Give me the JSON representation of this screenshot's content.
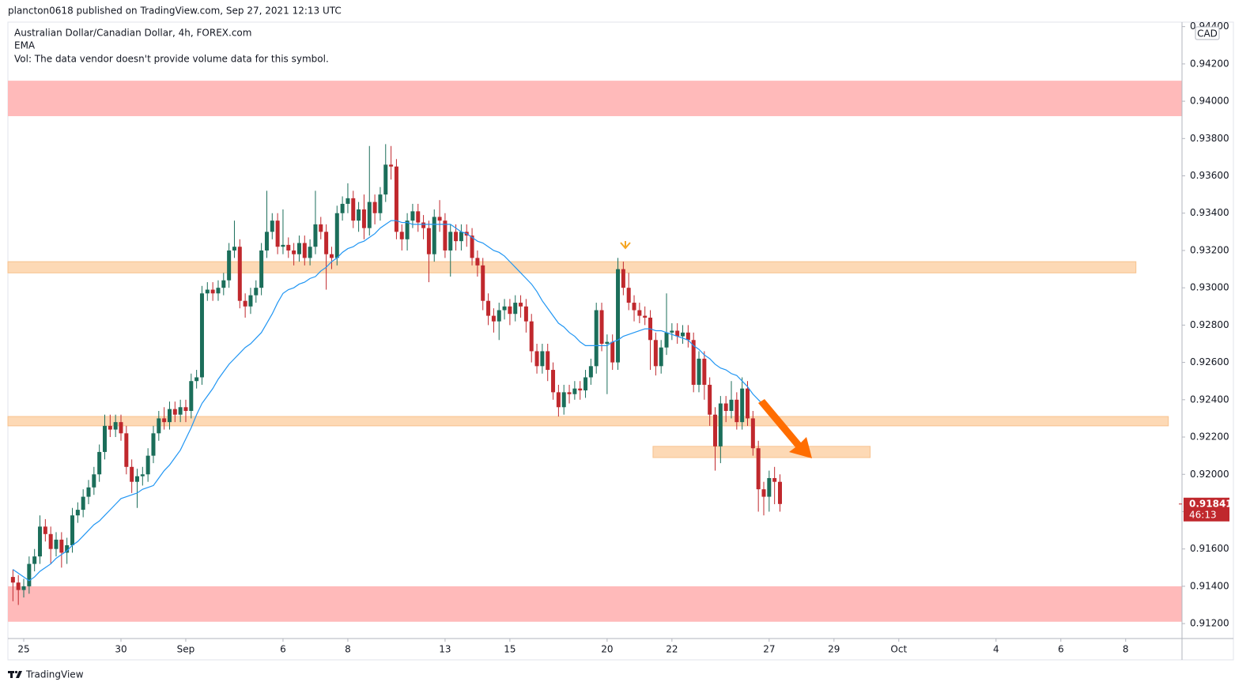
{
  "header": "plancton0618 published on TradingView.com, Sep 27, 2021 12:13 UTC",
  "footer": "TradingView",
  "chart_data": {
    "type": "candlestick",
    "title": "Australian Dollar/Canadian Dollar, 4h, FOREX.com",
    "volume_note": "Vol: The data vendor doesn't provide volume data for this symbol.",
    "currency": "CAD",
    "up_color": "#1b6e5a",
    "down_color": "#c0282d",
    "open": [
      0.9145,
      0.9142,
      0.9138,
      0.914,
      0.9152,
      0.9156,
      0.9172,
      0.9168,
      0.916,
      0.9165,
      0.9158,
      0.9162,
      0.9178,
      0.9181,
      0.9188,
      0.9193,
      0.92,
      0.9212,
      0.9226,
      0.9224,
      0.9228,
      0.9222,
      0.9204,
      0.9196,
      0.9199,
      0.92,
      0.921,
      0.9222,
      0.923,
      0.9228,
      0.9235,
      0.9232,
      0.9236,
      0.9234,
      0.925,
      0.9252,
      0.9297,
      0.9299,
      0.9297,
      0.93,
      0.9304,
      0.932,
      0.9322,
      0.9293,
      0.929,
      0.9296,
      0.93,
      0.932,
      0.933,
      0.9336,
      0.9322,
      0.9323,
      0.932,
      0.9318,
      0.9324,
      0.9316,
      0.9322,
      0.9334,
      0.933,
      0.9318,
      0.9316,
      0.934,
      0.9345,
      0.9348,
      0.9336,
      0.9342,
      0.9332,
      0.9346,
      0.934,
      0.935,
      0.9366,
      0.9365,
      0.933,
      0.9326,
      0.9336,
      0.9341,
      0.9335,
      0.9332,
      0.9318,
      0.9338,
      0.9336,
      0.932,
      0.933,
      0.9325,
      0.933,
      0.9328,
      0.9316,
      0.9312,
      0.9293,
      0.9285,
      0.9282,
      0.9288,
      0.929,
      0.9286,
      0.9292,
      0.929,
      0.9282,
      0.9266,
      0.9258,
      0.9266,
      0.9256,
      0.9244,
      0.9236,
      0.9244,
      0.9243,
      0.9246,
      0.9245,
      0.9252,
      0.9258,
      0.9288,
      0.927,
      0.9271,
      0.926,
      0.931,
      0.93,
      0.9292,
      0.9288,
      0.9285,
      0.9284,
      0.9272,
      0.9258,
      0.9268,
      0.9276,
      0.9277,
      0.9274,
      0.9276,
      0.9272,
      0.9248,
      0.9262,
      0.9248,
      0.9232,
      0.9215,
      0.9238,
      0.9234,
      0.924,
      0.9228,
      0.9246,
      0.923,
      0.9214,
      0.9192,
      0.9188,
      0.9198,
      0.9196
    ],
    "high": [
      0.9149,
      0.9146,
      0.9144,
      0.9156,
      0.916,
      0.9178,
      0.9176,
      0.9172,
      0.9169,
      0.9169,
      0.9166,
      0.9182,
      0.9185,
      0.9192,
      0.9197,
      0.9204,
      0.9216,
      0.9232,
      0.9232,
      0.9232,
      0.9232,
      0.9226,
      0.9208,
      0.9203,
      0.9204,
      0.9214,
      0.9226,
      0.9234,
      0.9236,
      0.9239,
      0.9239,
      0.924,
      0.924,
      0.9254,
      0.9256,
      0.9301,
      0.9303,
      0.9303,
      0.9304,
      0.9308,
      0.9324,
      0.9336,
      0.9326,
      0.9297,
      0.93,
      0.9304,
      0.9324,
      0.9352,
      0.934,
      0.934,
      0.9342,
      0.9327,
      0.9324,
      0.9328,
      0.9328,
      0.9326,
      0.9352,
      0.9338,
      0.9334,
      0.9322,
      0.9344,
      0.9349,
      0.9356,
      0.9352,
      0.9346,
      0.935,
      0.9376,
      0.935,
      0.9354,
      0.9377,
      0.9376,
      0.9369,
      0.9334,
      0.934,
      0.9345,
      0.9345,
      0.9339,
      0.9336,
      0.9342,
      0.9347,
      0.934,
      0.9334,
      0.9334,
      0.9334,
      0.9334,
      0.9332,
      0.932,
      0.9316,
      0.9297,
      0.9289,
      0.9292,
      0.9294,
      0.9294,
      0.9296,
      0.9296,
      0.9294,
      0.9286,
      0.927,
      0.927,
      0.927,
      0.926,
      0.9248,
      0.9248,
      0.9248,
      0.925,
      0.925,
      0.9256,
      0.9262,
      0.9292,
      0.9292,
      0.9275,
      0.9275,
      0.9316,
      0.9314,
      0.9308,
      0.9296,
      0.9292,
      0.929,
      0.9288,
      0.9276,
      0.9272,
      0.9297,
      0.9281,
      0.9281,
      0.928,
      0.928,
      0.9276,
      0.9266,
      0.9266,
      0.9252,
      0.9236,
      0.9242,
      0.9242,
      0.925,
      0.9244,
      0.9252,
      0.925,
      0.9234,
      0.9218,
      0.9196,
      0.9202,
      0.9204,
      0.92
    ],
    "low": [
      0.9132,
      0.913,
      0.9134,
      0.9136,
      0.9148,
      0.9152,
      0.9164,
      0.9152,
      0.9156,
      0.915,
      0.9152,
      0.9158,
      0.9174,
      0.9177,
      0.9184,
      0.9189,
      0.9196,
      0.9208,
      0.922,
      0.922,
      0.9218,
      0.92,
      0.919,
      0.9182,
      0.9194,
      0.9196,
      0.9206,
      0.9218,
      0.9224,
      0.9224,
      0.9228,
      0.9228,
      0.9228,
      0.923,
      0.9246,
      0.9248,
      0.9293,
      0.9293,
      0.9293,
      0.9296,
      0.93,
      0.9316,
      0.9289,
      0.9284,
      0.9286,
      0.9292,
      0.9296,
      0.9316,
      0.9326,
      0.9318,
      0.9318,
      0.9316,
      0.9312,
      0.9314,
      0.9312,
      0.9312,
      0.9318,
      0.9326,
      0.9299,
      0.931,
      0.9312,
      0.9336,
      0.934,
      0.9332,
      0.933,
      0.9326,
      0.9328,
      0.9334,
      0.9336,
      0.9346,
      0.9358,
      0.9326,
      0.932,
      0.932,
      0.9332,
      0.933,
      0.9326,
      0.9303,
      0.9314,
      0.933,
      0.9316,
      0.9306,
      0.932,
      0.932,
      0.9322,
      0.9312,
      0.9306,
      0.9288,
      0.928,
      0.9276,
      0.9272,
      0.9283,
      0.928,
      0.9282,
      0.9284,
      0.9276,
      0.926,
      0.9254,
      0.9254,
      0.925,
      0.924,
      0.9231,
      0.9232,
      0.9238,
      0.924,
      0.924,
      0.9241,
      0.9248,
      0.9254,
      0.9266,
      0.9243,
      0.9256,
      0.9256,
      0.9296,
      0.9288,
      0.9282,
      0.9281,
      0.928,
      0.9256,
      0.9253,
      0.9254,
      0.9264,
      0.9272,
      0.927,
      0.927,
      0.9268,
      0.9244,
      0.9244,
      0.924,
      0.9226,
      0.9202,
      0.9206,
      0.9228,
      0.923,
      0.9224,
      0.9224,
      0.9226,
      0.921,
      0.918,
      0.9178,
      0.918,
      0.9184,
      0.918
    ],
    "close": [
      0.9142,
      0.9138,
      0.914,
      0.9152,
      0.9156,
      0.9172,
      0.9168,
      0.916,
      0.9165,
      0.9158,
      0.9162,
      0.9178,
      0.9181,
      0.9188,
      0.9193,
      0.92,
      0.9212,
      0.9226,
      0.9224,
      0.9228,
      0.9222,
      0.9204,
      0.9196,
      0.9199,
      0.92,
      0.921,
      0.9222,
      0.923,
      0.9228,
      0.9235,
      0.9232,
      0.9236,
      0.9234,
      0.925,
      0.9252,
      0.9297,
      0.9299,
      0.9297,
      0.93,
      0.9304,
      0.932,
      0.9322,
      0.9293,
      0.929,
      0.9296,
      0.93,
      0.932,
      0.933,
      0.9336,
      0.9322,
      0.9323,
      0.932,
      0.9318,
      0.9324,
      0.9316,
      0.9322,
      0.9334,
      0.933,
      0.9318,
      0.9316,
      0.934,
      0.9345,
      0.9348,
      0.9336,
      0.9342,
      0.9332,
      0.9346,
      0.934,
      0.935,
      0.9366,
      0.9365,
      0.933,
      0.9326,
      0.9336,
      0.9341,
      0.9335,
      0.9332,
      0.9318,
      0.9338,
      0.9336,
      0.932,
      0.933,
      0.9325,
      0.933,
      0.9328,
      0.9316,
      0.9312,
      0.9293,
      0.9285,
      0.9282,
      0.9288,
      0.929,
      0.9286,
      0.9292,
      0.929,
      0.9282,
      0.9266,
      0.9258,
      0.9266,
      0.9256,
      0.9244,
      0.9236,
      0.9244,
      0.9243,
      0.9246,
      0.9245,
      0.9252,
      0.9258,
      0.9288,
      0.927,
      0.9271,
      0.926,
      0.931,
      0.93,
      0.9292,
      0.9288,
      0.9285,
      0.9284,
      0.9272,
      0.9258,
      0.9268,
      0.9276,
      0.9277,
      0.9274,
      0.9276,
      0.9272,
      0.9248,
      0.9262,
      0.9248,
      0.9232,
      0.9215,
      0.9238,
      0.9234,
      0.924,
      0.9228,
      0.9246,
      0.923,
      0.9214,
      0.9192,
      0.9188,
      0.9198,
      0.9196,
      0.91841
    ],
    "series": [
      {
        "name": "EMA",
        "color": "#2196f3",
        "values": [
          0.9149,
          0.9147,
          0.9145,
          0.9143,
          0.9145,
          0.9148,
          0.915,
          0.9152,
          0.9155,
          0.9157,
          0.9159,
          0.9162,
          0.9164,
          0.9167,
          0.917,
          0.9173,
          0.9175,
          0.9178,
          0.9181,
          0.9184,
          0.9187,
          0.9188,
          0.9189,
          0.919,
          0.9192,
          0.9193,
          0.9194,
          0.9198,
          0.9202,
          0.9205,
          0.9209,
          0.9213,
          0.9219,
          0.9225,
          0.9232,
          0.9238,
          0.9242,
          0.9246,
          0.9251,
          0.9255,
          0.9259,
          0.9262,
          0.9265,
          0.9268,
          0.927,
          0.9273,
          0.9276,
          0.9281,
          0.9286,
          0.9292,
          0.9297,
          0.9299,
          0.93,
          0.9302,
          0.9303,
          0.9305,
          0.9306,
          0.9309,
          0.9311,
          0.9314,
          0.9316,
          0.9319,
          0.9321,
          0.9322,
          0.9324,
          0.9325,
          0.9327,
          0.9329,
          0.9332,
          0.9334,
          0.9336,
          0.9336,
          0.9335,
          0.9335,
          0.9334,
          0.9334,
          0.9334,
          0.9334,
          0.9334,
          0.9334,
          0.9334,
          0.9334,
          0.9332,
          0.933,
          0.9329,
          0.9327,
          0.9325,
          0.9324,
          0.9322,
          0.932,
          0.9319,
          0.9317,
          0.9314,
          0.9311,
          0.9308,
          0.9305,
          0.9302,
          0.9298,
          0.9293,
          0.9289,
          0.9285,
          0.9281,
          0.9279,
          0.9276,
          0.9274,
          0.9271,
          0.9269,
          0.9269,
          0.9269,
          0.9269,
          0.9269,
          0.9271,
          0.9272,
          0.9274,
          0.9275,
          0.9276,
          0.9277,
          0.9278,
          0.9278,
          0.9277,
          0.9277,
          0.9276,
          0.9275,
          0.9274,
          0.9273,
          0.9272,
          0.9269,
          0.9267,
          0.9264,
          0.9262,
          0.9259,
          0.9257,
          0.9256,
          0.9254,
          0.9253,
          0.925,
          0.9247,
          0.9243,
          0.924,
          0.9237,
          0.9234,
          0.9231,
          0.9228
        ]
      }
    ],
    "zones": [
      {
        "xlim": [
          -0.93,
          216.43
        ],
        "ylim": [
          0.9392,
          0.9411
        ],
        "color": "#ffbaba"
      },
      {
        "xlim": [
          -0.93,
          207.9
        ],
        "ylim": [
          0.9308,
          0.9314
        ],
        "color": "#fdd9b5"
      },
      {
        "xlim": [
          -0.93,
          213.9
        ],
        "ylim": [
          0.9226,
          0.9231
        ],
        "color": "#fdd9b5"
      },
      {
        "xlim": [
          118.5,
          158.7
        ],
        "ylim": [
          0.9209,
          0.9215
        ],
        "color": "#fdd9b5"
      },
      {
        "xlim": [
          -0.93,
          216.43
        ],
        "ylim": [
          0.9121,
          0.914
        ],
        "color": "#ffbaba"
      }
    ],
    "last_price": {
      "value": 0.91841,
      "label": "0.91841"
    },
    "countdown": "46:13",
    "xlim": [
      -0.93,
      216.43
    ],
    "xticks": [
      {
        "value": 2,
        "label": "25"
      },
      {
        "value": 20,
        "label": "30"
      },
      {
        "value": 32,
        "label": "Sep"
      },
      {
        "value": 50,
        "label": "6"
      },
      {
        "value": 62,
        "label": "8"
      },
      {
        "value": 80,
        "label": "13"
      },
      {
        "value": 92,
        "label": "15"
      },
      {
        "value": 110,
        "label": "20"
      },
      {
        "value": 122,
        "label": "22"
      },
      {
        "value": 140,
        "label": "27"
      },
      {
        "value": 152,
        "label": "29"
      },
      {
        "value": 164,
        "label": "Oct"
      },
      {
        "value": 182,
        "label": "4"
      },
      {
        "value": 194,
        "label": "6"
      },
      {
        "value": 206,
        "label": "8"
      }
    ],
    "ylim": [
      0.9112,
      0.94424
    ],
    "yticks": [
      {
        "value": 0.912,
        "label": "0.91200"
      },
      {
        "value": 0.914,
        "label": "0.91400"
      },
      {
        "value": 0.916,
        "label": "0.91600"
      },
      {
        "value": 0.918,
        "label": "0.91800"
      },
      {
        "value": 0.92,
        "label": "0.92000"
      },
      {
        "value": 0.922,
        "label": "0.92200"
      },
      {
        "value": 0.924,
        "label": "0.92400"
      },
      {
        "value": 0.926,
        "label": "0.92600"
      },
      {
        "value": 0.928,
        "label": "0.92800"
      },
      {
        "value": 0.93,
        "label": "0.93000"
      },
      {
        "value": 0.932,
        "label": "0.93200"
      },
      {
        "value": 0.934,
        "label": "0.93400"
      },
      {
        "value": 0.936,
        "label": "0.93600"
      },
      {
        "value": 0.938,
        "label": "0.93800"
      },
      {
        "value": 0.94,
        "label": "0.94000"
      },
      {
        "value": 0.942,
        "label": "0.94200"
      },
      {
        "value": 0.944,
        "label": "0.94400"
      }
    ]
  }
}
